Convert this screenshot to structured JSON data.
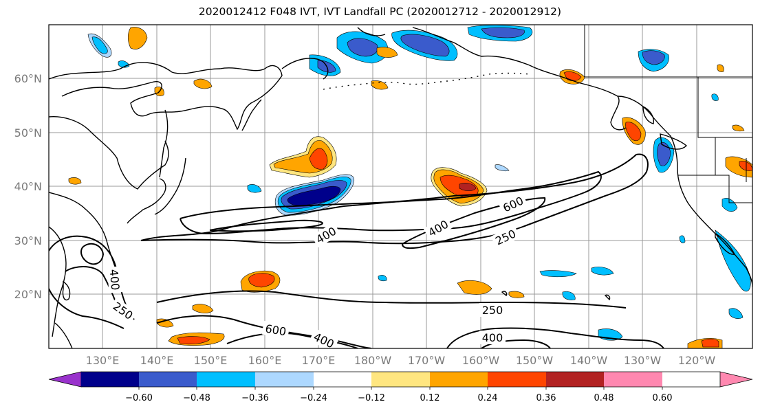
{
  "title": "2020012412 F048 IVT, IVT Landfall PC (2020012712 - 2020012912)",
  "lat_labels": [
    "60°N",
    "50°N",
    "40°N",
    "30°N",
    "20°N"
  ],
  "lon_labels": [
    "130°E",
    "140°E",
    "150°E",
    "160°E",
    "170°E",
    "180°W",
    "170°W",
    "160°W",
    "150°W",
    "140°W",
    "130°W",
    "120°W"
  ],
  "contour_labels": {
    "c400_mid": "400",
    "c400_east": "400",
    "c600_east": "600",
    "c250_east": "250",
    "c400_west": "400",
    "c250_west": "250",
    "c600_south": "600",
    "c400_south": "400",
    "c250_south": "250",
    "c400_se": "400"
  },
  "colorbar": {
    "colors": [
      "#9932cc",
      "#00008b",
      "#3a5bcc",
      "#00bfff",
      "#add8ff",
      "#ffffff",
      "#ffe680",
      "#ffa500",
      "#ff4500",
      "#b22222",
      "#ff88b0"
    ],
    "tick_labels": [
      "−0.60",
      "−0.48",
      "−0.36",
      "−0.24",
      "−0.12",
      "0.12",
      "0.24",
      "0.36",
      "0.48",
      "0.60"
    ]
  }
}
